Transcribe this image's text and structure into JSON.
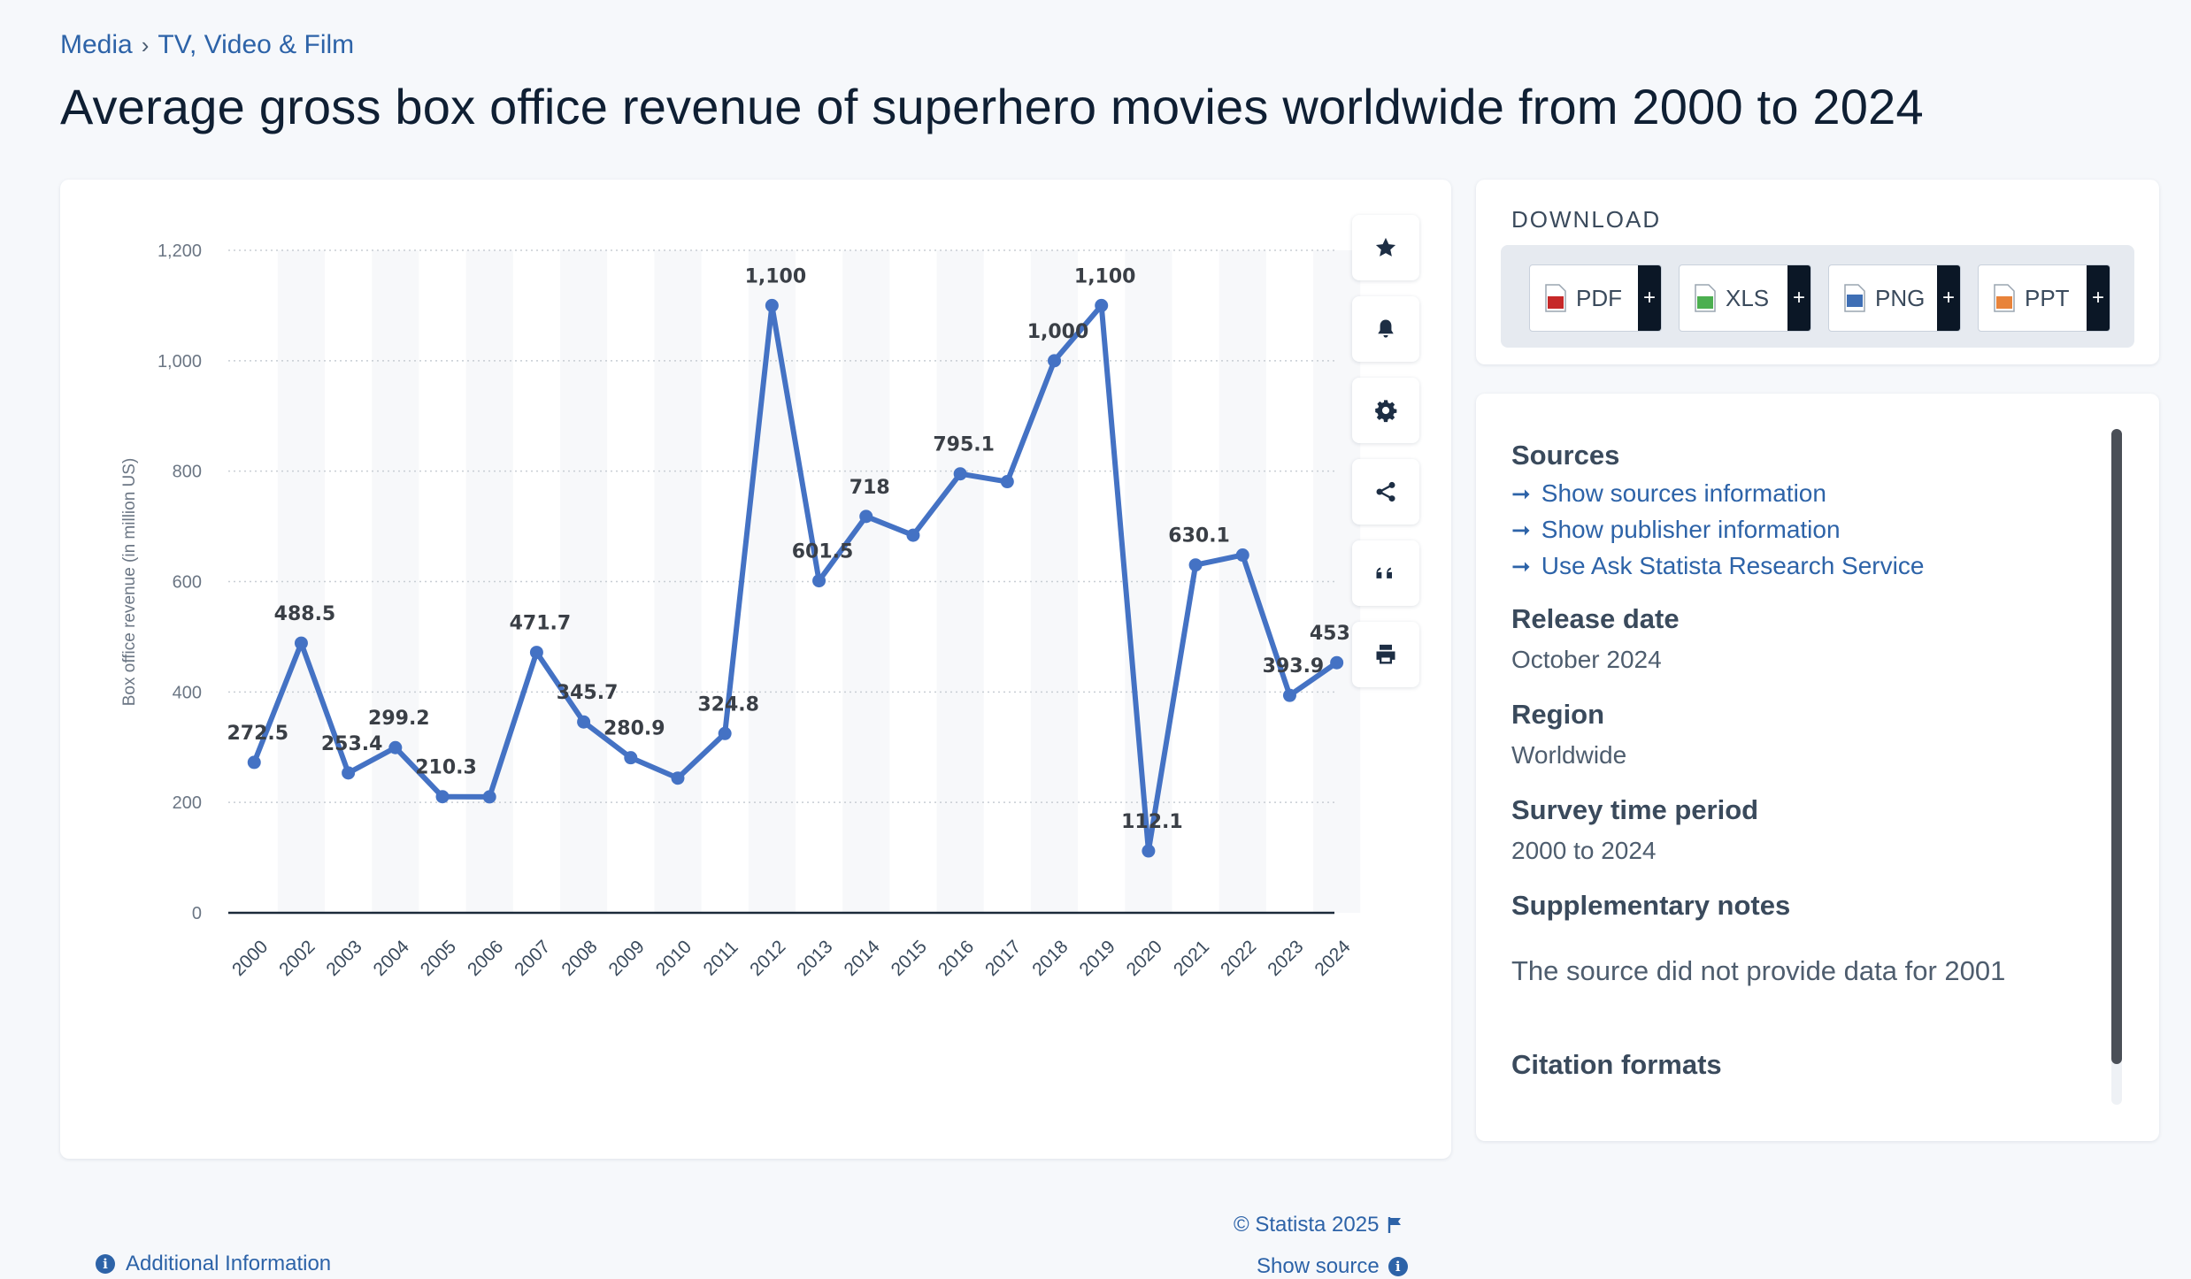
{
  "breadcrumb": {
    "items": [
      "Media",
      "TV, Video & Film"
    ],
    "separator": "›"
  },
  "page_title": "Average gross box office revenue of superhero movies worldwide from 2000 to 2024",
  "toolbar": {
    "icons": [
      "star-icon",
      "bell-icon",
      "gear-icon",
      "share-icon",
      "quote-icon",
      "print-icon"
    ]
  },
  "chart_footer": {
    "copyright": "© Statista 2025",
    "show_source": "Show source",
    "additional_info": "Additional Information"
  },
  "download": {
    "heading": "DOWNLOAD",
    "buttons": [
      {
        "label": "PDF",
        "icon": "pdf-file-icon",
        "color": "#c62828"
      },
      {
        "label": "XLS",
        "icon": "xls-file-icon",
        "color": "#4caf50"
      },
      {
        "label": "PNG",
        "icon": "png-file-icon",
        "color": "#3f6fb5"
      },
      {
        "label": "PPT",
        "icon": "ppt-file-icon",
        "color": "#e8833a"
      }
    ],
    "plus": "+"
  },
  "info": {
    "sources_heading": "Sources",
    "links": [
      "Show sources information",
      "Show publisher information",
      "Use Ask Statista Research Service"
    ],
    "release_date_heading": "Release date",
    "release_date": "October 2024",
    "region_heading": "Region",
    "region": "Worldwide",
    "survey_heading": "Survey time period",
    "survey": "2000 to 2024",
    "supp_heading": "Supplementary notes",
    "supp": "The source did not provide data for 2001",
    "citation_heading": "Citation formats"
  },
  "colors": {
    "accent": "#4472c4",
    "link": "#2d63a8",
    "title": "#0f1f33"
  },
  "chart_data": {
    "type": "line",
    "title": "Average gross box office revenue of superhero movies worldwide from 2000 to 2024",
    "xlabel": "",
    "ylabel": "Box office revenue (in million US)",
    "ylim": [
      0,
      1200
    ],
    "yticks": [
      0,
      200,
      400,
      600,
      800,
      1000,
      1200
    ],
    "ytick_labels": [
      "0",
      "200",
      "400",
      "600",
      "800",
      "1,000",
      "1,200"
    ],
    "grid": true,
    "legend": "none",
    "categories": [
      "2000",
      "2002",
      "2003",
      "2004",
      "2005",
      "2006",
      "2007",
      "2008",
      "2009",
      "2010",
      "2011",
      "2012",
      "2013",
      "2014",
      "2015",
      "2016",
      "2017",
      "2018",
      "2019",
      "2020",
      "2021",
      "2022",
      "2023",
      "2024"
    ],
    "series": [
      {
        "color": "#4472c4",
        "values": [
          272.5,
          488.5,
          253.4,
          299.2,
          210.3,
          210,
          471.7,
          345.7,
          280.9,
          244,
          324.8,
          1100,
          601.5,
          718,
          684,
          795.1,
          781,
          1000,
          1100,
          112.1,
          630.1,
          648,
          393.9,
          453.1
        ],
        "labels": [
          "272.5",
          "488.5",
          "253.4",
          "299.2",
          "210.3",
          "",
          "471.7",
          "345.7",
          "280.9",
          "",
          "324.8",
          "1,100",
          "601.5",
          "718",
          "",
          "795.1",
          "",
          "1,000",
          "1,100",
          "112.1",
          "630.1",
          "",
          "393.9",
          "453.1"
        ]
      }
    ]
  }
}
